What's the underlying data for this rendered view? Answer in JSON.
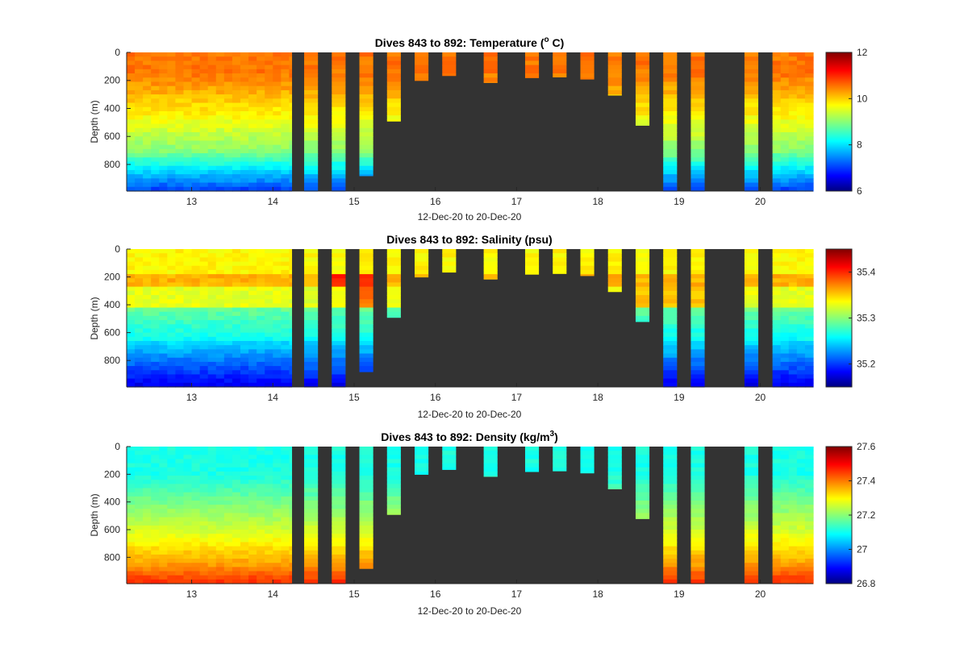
{
  "chart_data": [
    {
      "type": "heatmap",
      "variable": "temperature",
      "title_pre": "Dives 843 to 892: Temperature (",
      "title_sup": "o",
      "title_post": " C)",
      "xlabel": "12-Dec-20 to 20-Dec-20",
      "ylabel": "Depth (m)",
      "xlim": [
        12.2,
        20.65
      ],
      "ylim": [
        0,
        990
      ],
      "y_reversed": true,
      "xticks": [
        "13",
        "14",
        "15",
        "16",
        "17",
        "18",
        "19",
        "20"
      ],
      "yticks": [
        "0",
        "200",
        "400",
        "600",
        "800"
      ],
      "colorbar": {
        "min": 6,
        "max": 12,
        "ticks": [
          "6",
          "8",
          "10",
          "12"
        ]
      },
      "background_color": "#333333"
    },
    {
      "type": "heatmap",
      "variable": "salinity",
      "title": "Dives 843 to 892: Salinity (psu)",
      "xlabel": "12-Dec-20 to 20-Dec-20",
      "ylabel": "Depth (m)",
      "xlim": [
        12.2,
        20.65
      ],
      "ylim": [
        0,
        990
      ],
      "y_reversed": true,
      "xticks": [
        "13",
        "14",
        "15",
        "16",
        "17",
        "18",
        "19",
        "20"
      ],
      "yticks": [
        "0",
        "200",
        "400",
        "600",
        "800"
      ],
      "colorbar": {
        "min": 35.15,
        "max": 35.45,
        "ticks": [
          "35.2",
          "35.3",
          "35.4"
        ]
      },
      "background_color": "#333333"
    },
    {
      "type": "heatmap",
      "variable": "density",
      "title_pre": "Dives 843 to 892: Density (kg/m",
      "title_sup": "3",
      "title_post": ")",
      "xlabel": "12-Dec-20 to 20-Dec-20",
      "ylabel": "Depth (m)",
      "xlim": [
        12.2,
        20.65
      ],
      "ylim": [
        0,
        990
      ],
      "y_reversed": true,
      "xticks": [
        "13",
        "14",
        "15",
        "16",
        "17",
        "18",
        "19",
        "20"
      ],
      "yticks": [
        "0",
        "200",
        "400",
        "600",
        "800"
      ],
      "colorbar": {
        "min": 26.8,
        "max": 27.6,
        "ticks": [
          "26.8",
          "27",
          "27.2",
          "27.4",
          "27.6"
        ]
      },
      "background_color": "#333333"
    }
  ],
  "profiles": {
    "continuous_segments": [
      [
        12.2,
        14.23
      ],
      [
        20.15,
        20.65
      ]
    ],
    "isolated": [
      {
        "x": 14.47,
        "depth": 990
      },
      {
        "x": 14.81,
        "depth": 990
      },
      {
        "x": 15.15,
        "depth": 880
      },
      {
        "x": 15.49,
        "depth": 490
      },
      {
        "x": 15.83,
        "depth": 200
      },
      {
        "x": 16.17,
        "depth": 165
      },
      {
        "x": 16.68,
        "depth": 215
      },
      {
        "x": 17.19,
        "depth": 180
      },
      {
        "x": 17.53,
        "depth": 175
      },
      {
        "x": 17.87,
        "depth": 190
      },
      {
        "x": 18.21,
        "depth": 305
      },
      {
        "x": 18.55,
        "depth": 520
      },
      {
        "x": 18.89,
        "depth": 990
      },
      {
        "x": 19.23,
        "depth": 990
      },
      {
        "x": 19.89,
        "depth": 990
      }
    ]
  }
}
